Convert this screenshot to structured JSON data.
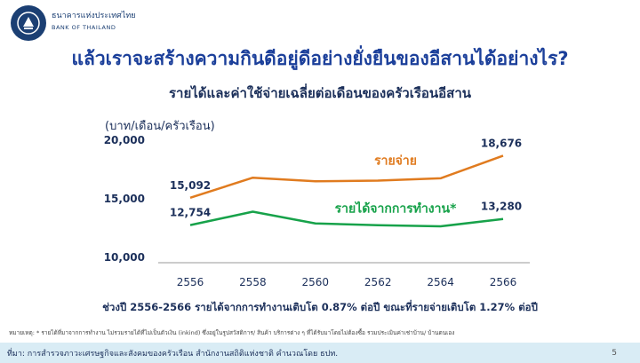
{
  "brand": {
    "name_th": "ธนาคารแห่งประเทศไทย",
    "name_en": "BANK OF THAILAND",
    "color": "#1b3f73"
  },
  "title": "แล้วเราจะสร้างความกินดีอยู่ดีอย่างยั่งยืนของอีสานได้อย่างไร?",
  "summary": "ช่วงปี 2556-2566 รายได้จากการทำงานเติบโต 0.87% ต่อปี ขณะที่รายจ่ายเติบโต 1.27% ต่อปี",
  "note": "หมายเหตุ: * รายได้ที่มาจากการทำงาน ไม่รวมรายได้ที่ไม่เป็นตัวเงิน (inkind) ซึ่งอยู่ในรูปสวัสดิการ/ สินค้า บริการต่าง ๆ ที่ได้รับมาโดยไม่ต้องซื้อ รวมประเมินค่าเช่าบ้าน/ บ้านตนเอง",
  "footer": {
    "source": "ที่มา: การสำรวจภาวะเศรษฐกิจและสังคมของครัวเรือน สำนักงานสถิติแห่งชาติ คำนวณโดย ธปท.",
    "page": "5"
  },
  "chart_data": {
    "type": "line",
    "title": "รายได้และค่าใช้จ่ายเฉลี่ยต่อเดือนของครัวเรือนอีสาน",
    "ylabel": "(บาท/เดือน/ครัวเรือน)",
    "x": [
      2556,
      2558,
      2560,
      2562,
      2564,
      2566
    ],
    "x_ticks": [
      "2556",
      "2558",
      "2560",
      "2562",
      "2564",
      "2566"
    ],
    "ylim": [
      10000,
      20000
    ],
    "y_ticks": [
      {
        "value": 10000,
        "label": "10,000"
      },
      {
        "value": 15000,
        "label": "15,000"
      },
      {
        "value": 20000,
        "label": "20,000"
      }
    ],
    "grid": false,
    "series": [
      {
        "name": "รายจ่าย",
        "color": "#e07b1f",
        "values": [
          15092,
          16800,
          16500,
          16550,
          16750,
          18676
        ],
        "labels": {
          "first": "15,092",
          "last": "18,676"
        }
      },
      {
        "name": "รายได้จากการทำงาน*",
        "color": "#17a24a",
        "values": [
          12754,
          13900,
          12900,
          12750,
          12650,
          13280
        ],
        "labels": {
          "first": "12,754",
          "last": "13,280"
        }
      }
    ]
  }
}
